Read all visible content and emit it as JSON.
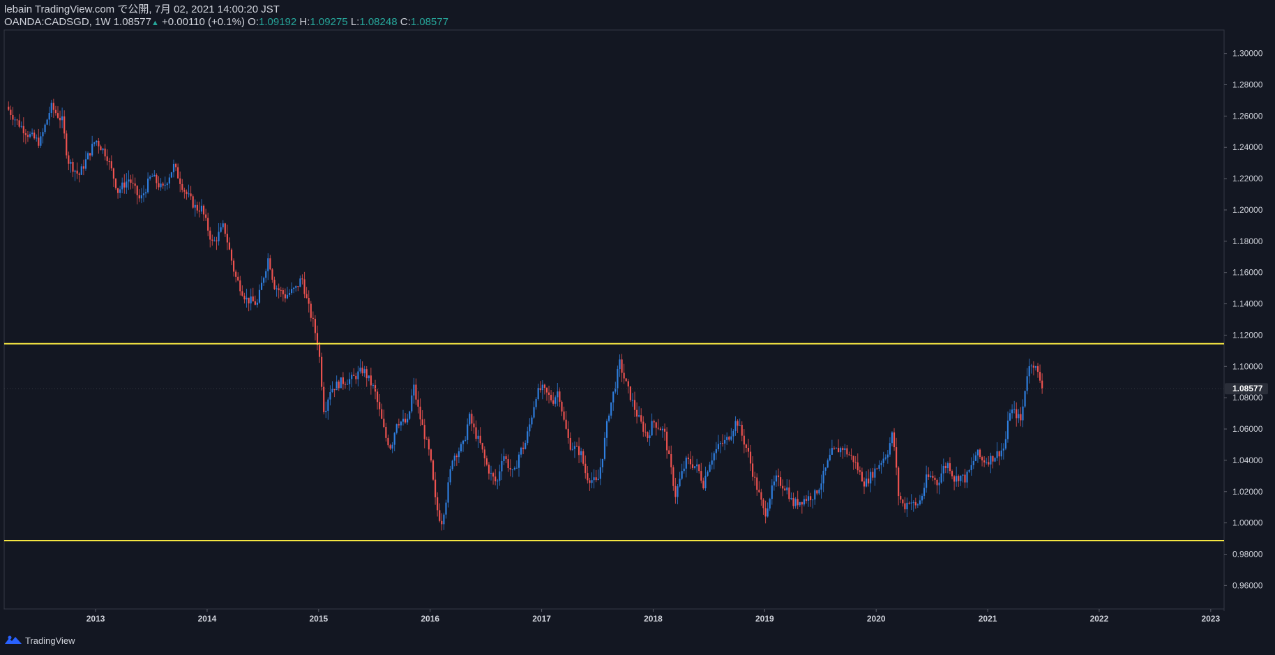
{
  "header": {
    "line1": "lebain TradingView.com で公開, 7月 02, 2021 14:00:20 JST",
    "symbol": "OANDA:CADSGD, 1W",
    "last": "1.08577",
    "change": "+0.00110 (+0.1%)",
    "o_label": "O:",
    "o": "1.09192",
    "h_label": "H:",
    "h": "1.09275",
    "l_label": "L:",
    "l": "1.08248",
    "c_label": "C:",
    "c": "1.08577"
  },
  "footer": {
    "brand": "TradingView"
  },
  "colors": {
    "background": "#131722",
    "up": "#2f7fe0",
    "down": "#ef5350",
    "hline": "#f5e642",
    "text": "#d1d4dc",
    "value_teal": "#26a69a"
  },
  "chart_data": {
    "type": "candlestick",
    "title": "OANDA:CADSGD, 1W",
    "ylim": [
      0.945,
      1.315
    ],
    "xlim": [
      2012.18,
      2023.12
    ],
    "y_ticks": [
      "1.30000",
      "1.28000",
      "1.26000",
      "1.24000",
      "1.22000",
      "1.20000",
      "1.18000",
      "1.16000",
      "1.14000",
      "1.12000",
      "1.10000",
      "1.08000",
      "1.06000",
      "1.04000",
      "1.02000",
      "1.00000",
      "0.98000",
      "0.96000"
    ],
    "x_ticks": [
      "2013",
      "2014",
      "2015",
      "2016",
      "2017",
      "2018",
      "2019",
      "2020",
      "2021",
      "2022",
      "2023"
    ],
    "last_price_label": "1.08577",
    "horizontal_lines": [
      1.1145,
      0.9887
    ],
    "close_path": [
      [
        2012.2,
        1.266
      ],
      [
        2012.3,
        1.256
      ],
      [
        2012.4,
        1.248
      ],
      [
        2012.5,
        1.243
      ],
      [
        2012.6,
        1.266
      ],
      [
        2012.7,
        1.257
      ],
      [
        2012.75,
        1.232
      ],
      [
        2012.85,
        1.222
      ],
      [
        2013.0,
        1.245
      ],
      [
        2013.1,
        1.235
      ],
      [
        2013.2,
        1.212
      ],
      [
        2013.3,
        1.22
      ],
      [
        2013.4,
        1.206
      ],
      [
        2013.5,
        1.222
      ],
      [
        2013.6,
        1.213
      ],
      [
        2013.7,
        1.228
      ],
      [
        2013.8,
        1.212
      ],
      [
        2013.9,
        1.201
      ],
      [
        2013.95,
        1.201
      ],
      [
        2014.05,
        1.178
      ],
      [
        2014.15,
        1.19
      ],
      [
        2014.25,
        1.158
      ],
      [
        2014.35,
        1.143
      ],
      [
        2014.45,
        1.14
      ],
      [
        2014.5,
        1.156
      ],
      [
        2014.55,
        1.17
      ],
      [
        2014.6,
        1.152
      ],
      [
        2014.7,
        1.145
      ],
      [
        2014.8,
        1.15
      ],
      [
        2014.85,
        1.157
      ],
      [
        2014.9,
        1.14
      ],
      [
        2014.95,
        1.128
      ],
      [
        2015.0,
        1.112
      ],
      [
        2015.05,
        1.07
      ],
      [
        2015.1,
        1.085
      ],
      [
        2015.2,
        1.09
      ],
      [
        2015.3,
        1.092
      ],
      [
        2015.4,
        1.098
      ],
      [
        2015.5,
        1.085
      ],
      [
        2015.55,
        1.07
      ],
      [
        2015.6,
        1.055
      ],
      [
        2015.65,
        1.048
      ],
      [
        2015.7,
        1.065
      ],
      [
        2015.8,
        1.064
      ],
      [
        2015.85,
        1.088
      ],
      [
        2015.9,
        1.07
      ],
      [
        2016.0,
        1.042
      ],
      [
        2016.05,
        1.012
      ],
      [
        2016.1,
        1.0
      ],
      [
        2016.15,
        1.018
      ],
      [
        2016.2,
        1.042
      ],
      [
        2016.3,
        1.05
      ],
      [
        2016.35,
        1.068
      ],
      [
        2016.4,
        1.058
      ],
      [
        2016.45,
        1.05
      ],
      [
        2016.5,
        1.038
      ],
      [
        2016.55,
        1.03
      ],
      [
        2016.6,
        1.025
      ],
      [
        2016.65,
        1.045
      ],
      [
        2016.7,
        1.037
      ],
      [
        2016.75,
        1.03
      ],
      [
        2016.8,
        1.045
      ],
      [
        2016.85,
        1.05
      ],
      [
        2016.9,
        1.065
      ],
      [
        2016.95,
        1.082
      ],
      [
        2017.0,
        1.086
      ],
      [
        2017.1,
        1.078
      ],
      [
        2017.15,
        1.085
      ],
      [
        2017.2,
        1.065
      ],
      [
        2017.25,
        1.05
      ],
      [
        2017.35,
        1.045
      ],
      [
        2017.4,
        1.03
      ],
      [
        2017.5,
        1.025
      ],
      [
        2017.55,
        1.045
      ],
      [
        2017.6,
        1.07
      ],
      [
        2017.65,
        1.085
      ],
      [
        2017.7,
        1.102
      ],
      [
        2017.75,
        1.09
      ],
      [
        2017.8,
        1.08
      ],
      [
        2017.85,
        1.07
      ],
      [
        2017.9,
        1.062
      ],
      [
        2017.95,
        1.055
      ],
      [
        2018.0,
        1.065
      ],
      [
        2018.1,
        1.058
      ],
      [
        2018.15,
        1.038
      ],
      [
        2018.2,
        1.018
      ],
      [
        2018.25,
        1.03
      ],
      [
        2018.3,
        1.04
      ],
      [
        2018.4,
        1.035
      ],
      [
        2018.45,
        1.025
      ],
      [
        2018.5,
        1.038
      ],
      [
        2018.55,
        1.045
      ],
      [
        2018.6,
        1.05
      ],
      [
        2018.65,
        1.052
      ],
      [
        2018.7,
        1.058
      ],
      [
        2018.75,
        1.066
      ],
      [
        2018.8,
        1.055
      ],
      [
        2018.85,
        1.045
      ],
      [
        2018.9,
        1.03
      ],
      [
        2018.95,
        1.018
      ],
      [
        2019.0,
        1.005
      ],
      [
        2019.05,
        1.018
      ],
      [
        2019.1,
        1.028
      ],
      [
        2019.2,
        1.022
      ],
      [
        2019.25,
        1.012
      ],
      [
        2019.35,
        1.015
      ],
      [
        2019.45,
        1.018
      ],
      [
        2019.5,
        1.025
      ],
      [
        2019.55,
        1.035
      ],
      [
        2019.6,
        1.045
      ],
      [
        2019.7,
        1.048
      ],
      [
        2019.8,
        1.04
      ],
      [
        2019.85,
        1.032
      ],
      [
        2019.9,
        1.025
      ],
      [
        2019.95,
        1.03
      ],
      [
        2020.0,
        1.035
      ],
      [
        2020.1,
        1.045
      ],
      [
        2020.15,
        1.058
      ],
      [
        2020.2,
        1.018
      ],
      [
        2020.25,
        1.01
      ],
      [
        2020.3,
        1.015
      ],
      [
        2020.35,
        1.01
      ],
      [
        2020.4,
        1.015
      ],
      [
        2020.45,
        1.028
      ],
      [
        2020.5,
        1.03
      ],
      [
        2020.55,
        1.025
      ],
      [
        2020.6,
        1.035
      ],
      [
        2020.65,
        1.038
      ],
      [
        2020.7,
        1.028
      ],
      [
        2020.75,
        1.03
      ],
      [
        2020.8,
        1.028
      ],
      [
        2020.85,
        1.035
      ],
      [
        2020.9,
        1.045
      ],
      [
        2020.95,
        1.04
      ],
      [
        2021.0,
        1.04
      ],
      [
        2021.05,
        1.042
      ],
      [
        2021.1,
        1.045
      ],
      [
        2021.15,
        1.048
      ],
      [
        2021.2,
        1.072
      ],
      [
        2021.25,
        1.07
      ],
      [
        2021.3,
        1.065
      ],
      [
        2021.35,
        1.095
      ],
      [
        2021.4,
        1.104
      ],
      [
        2021.45,
        1.095
      ],
      [
        2021.5,
        1.086
      ]
    ]
  }
}
